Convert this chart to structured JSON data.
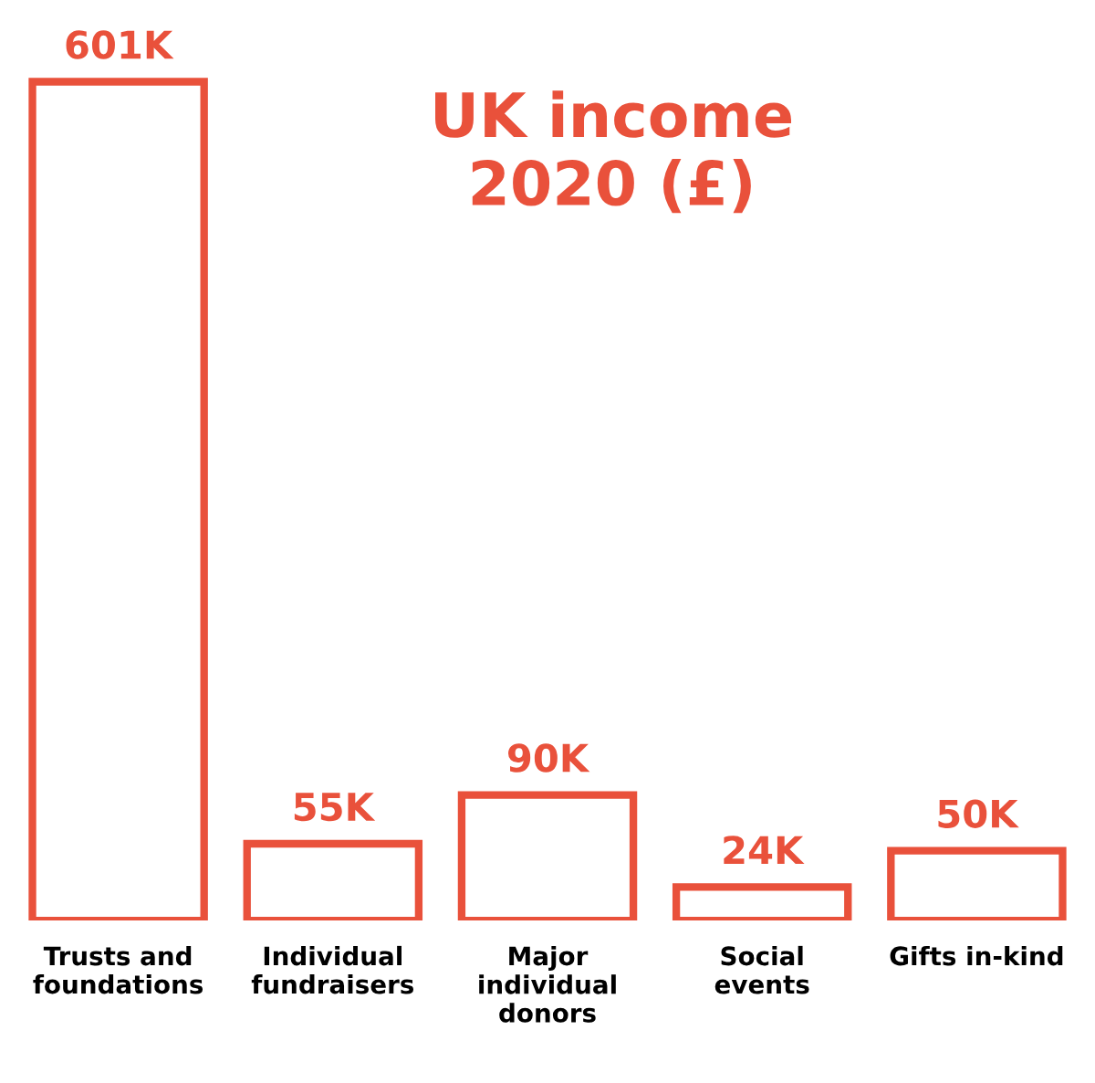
{
  "chart_data": {
    "type": "bar",
    "title": "UK income\n2020 (£)",
    "categories": [
      "Trusts and\nfoundations",
      "Individual\nfundraisers",
      "Major\nindividual\ndonors",
      "Social\nevents",
      "Gifts in-kind"
    ],
    "values": [
      601,
      55,
      90,
      24,
      50
    ],
    "value_labels": [
      "601K",
      "55K",
      "90K",
      "24K",
      "50K"
    ],
    "color": "#e9513b",
    "grid": false
  }
}
